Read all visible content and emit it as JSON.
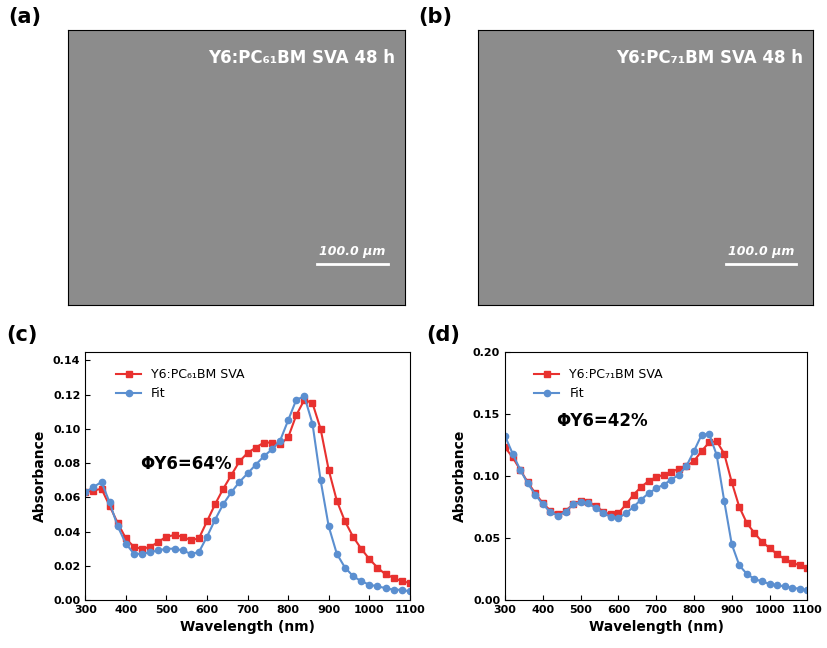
{
  "images": [
    {
      "panel": "(a)",
      "caption": "Y6:PC₆₁BM SVA 48 h",
      "scale_bar": "100.0 µm"
    },
    {
      "panel": "(b)",
      "caption": "Y6:PC₇₁BM SVA 48 h",
      "scale_bar": "100.0 µm"
    }
  ],
  "chart_data": [
    {
      "type": "line",
      "panel": "(c)",
      "x_label": "Wavelength (nm)",
      "y_label": "Absorbance",
      "annotations": [
        "ΦY6=64%"
      ],
      "legend": "upper left",
      "xlim": [
        300,
        1100
      ],
      "xticks": [
        300,
        400,
        500,
        600,
        700,
        800,
        900,
        1000,
        1100
      ],
      "ylim": [
        0,
        0.145
      ],
      "yticks": [
        {
          "value": 0,
          "label": "0.00"
        },
        {
          "value": 0.02,
          "label": "0.02"
        },
        {
          "value": 0.04,
          "label": "0.04"
        },
        {
          "value": 0.06,
          "label": "0.06"
        },
        {
          "value": 0.08,
          "label": "0.08"
        },
        {
          "value": 0.1,
          "label": "0.10"
        },
        {
          "value": 0.12,
          "label": "0.12"
        },
        {
          "value": 0.14,
          "label": "0.14"
        }
      ],
      "x": [
        300,
        320,
        340,
        360,
        380,
        400,
        420,
        440,
        460,
        480,
        500,
        520,
        540,
        560,
        580,
        600,
        620,
        640,
        660,
        680,
        700,
        720,
        740,
        760,
        780,
        800,
        820,
        840,
        860,
        880,
        900,
        920,
        940,
        960,
        980,
        1000,
        1020,
        1040,
        1060,
        1080,
        1100
      ],
      "series": [
        {
          "name": "Y6:PC₆₁BM SVA",
          "color": "#e8312f",
          "marker": "square",
          "line_style": "solid",
          "values": [
            0.063,
            0.064,
            0.065,
            0.055,
            0.045,
            0.036,
            0.031,
            0.03,
            0.031,
            0.034,
            0.037,
            0.038,
            0.037,
            0.035,
            0.036,
            0.046,
            0.056,
            0.065,
            0.073,
            0.081,
            0.086,
            0.089,
            0.092,
            0.092,
            0.091,
            0.095,
            0.108,
            0.117,
            0.115,
            0.1,
            0.076,
            0.058,
            0.046,
            0.037,
            0.03,
            0.024,
            0.019,
            0.015,
            0.013,
            0.011,
            0.01
          ]
        },
        {
          "name": "Fit",
          "color": "#5b8fd0",
          "marker": "circle",
          "line_style": "solid",
          "values": [
            0.063,
            0.066,
            0.069,
            0.057,
            0.043,
            0.033,
            0.027,
            0.027,
            0.028,
            0.029,
            0.03,
            0.03,
            0.029,
            0.027,
            0.028,
            0.037,
            0.047,
            0.056,
            0.063,
            0.069,
            0.074,
            0.079,
            0.084,
            0.088,
            0.093,
            0.105,
            0.117,
            0.119,
            0.103,
            0.07,
            0.043,
            0.027,
            0.019,
            0.014,
            0.011,
            0.009,
            0.008,
            0.007,
            0.006,
            0.006,
            0.005
          ]
        }
      ]
    },
    {
      "type": "line",
      "panel": "(d)",
      "x_label": "Wavelength (nm)",
      "y_label": "Absorbance",
      "annotations": [
        "ΦY6=42%"
      ],
      "legend": "upper left",
      "xlim": [
        300,
        1100
      ],
      "xticks": [
        300,
        400,
        500,
        600,
        700,
        800,
        900,
        1000,
        1100
      ],
      "ylim": [
        0,
        0.2
      ],
      "yticks": [
        {
          "value": 0,
          "label": "0.00"
        },
        {
          "value": 0.05,
          "label": "0.05"
        },
        {
          "value": 0.1,
          "label": "0.10"
        },
        {
          "value": 0.15,
          "label": "0.15"
        },
        {
          "value": 0.2,
          "label": "0.20"
        }
      ],
      "x": [
        300,
        320,
        340,
        360,
        380,
        400,
        420,
        440,
        460,
        480,
        500,
        520,
        540,
        560,
        580,
        600,
        620,
        640,
        660,
        680,
        700,
        720,
        740,
        760,
        780,
        800,
        820,
        840,
        860,
        880,
        900,
        920,
        940,
        960,
        980,
        1000,
        1020,
        1040,
        1060,
        1080,
        1100
      ],
      "series": [
        {
          "name": "Y6:PC₇₁BM SVA",
          "color": "#e8312f",
          "marker": "square",
          "line_style": "solid",
          "values": [
            0.123,
            0.115,
            0.105,
            0.095,
            0.086,
            0.078,
            0.072,
            0.069,
            0.072,
            0.077,
            0.08,
            0.079,
            0.076,
            0.071,
            0.069,
            0.07,
            0.077,
            0.085,
            0.091,
            0.096,
            0.099,
            0.101,
            0.103,
            0.106,
            0.108,
            0.112,
            0.12,
            0.127,
            0.128,
            0.118,
            0.095,
            0.075,
            0.062,
            0.054,
            0.047,
            0.042,
            0.037,
            0.033,
            0.03,
            0.028,
            0.026
          ]
        },
        {
          "name": "Fit",
          "color": "#5b8fd0",
          "marker": "circle",
          "line_style": "solid",
          "values": [
            0.132,
            0.118,
            0.105,
            0.094,
            0.085,
            0.077,
            0.071,
            0.068,
            0.071,
            0.077,
            0.079,
            0.078,
            0.074,
            0.07,
            0.067,
            0.066,
            0.07,
            0.075,
            0.081,
            0.086,
            0.09,
            0.093,
            0.097,
            0.101,
            0.108,
            0.12,
            0.133,
            0.134,
            0.117,
            0.08,
            0.045,
            0.028,
            0.021,
            0.017,
            0.015,
            0.013,
            0.012,
            0.011,
            0.01,
            0.009,
            0.008
          ]
        }
      ]
    }
  ]
}
